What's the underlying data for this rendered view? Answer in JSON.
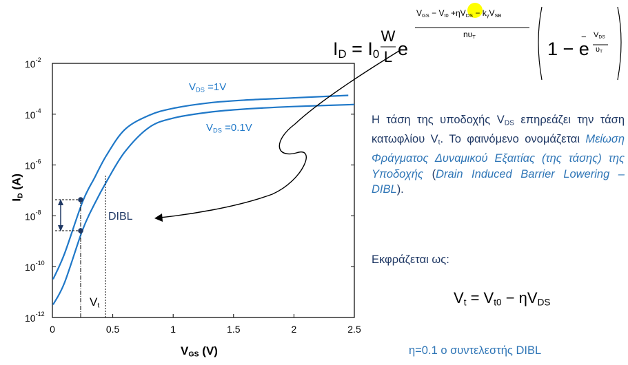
{
  "chart_data": {
    "type": "line",
    "xlabel": "V_GS (V)",
    "ylabel": "I_D (A)",
    "xlim": [
      0,
      2.5
    ],
    "ylim": [
      1e-12,
      0.01
    ],
    "yscale": "log",
    "x_ticks": [
      "0",
      "0.5",
      "1",
      "1.5",
      "2",
      "2.5"
    ],
    "y_ticks": [
      {
        "base": "10",
        "exp": "-2"
      },
      {
        "base": "10",
        "exp": "-4"
      },
      {
        "base": "10",
        "exp": "-6"
      },
      {
        "base": "10",
        "exp": "-8"
      },
      {
        "base": "10",
        "exp": "-10"
      },
      {
        "base": "10",
        "exp": "-12"
      }
    ],
    "series": [
      {
        "name": "V_DS =1V",
        "x": [
          -0.05,
          0.1,
          0.25,
          0.35,
          0.45,
          0.6,
          0.8,
          1.0,
          1.3,
          1.6,
          2.0,
          2.45
        ],
        "y": [
          3.2e-11,
          3.2e-10,
          3.6e-08,
          3.2e-07,
          2.5e-06,
          2.5e-05,
          9e-05,
          0.00017,
          0.00028,
          0.00036,
          0.00044,
          0.00055
        ]
      },
      {
        "name": "V_DS =0.1V",
        "x": [
          -0.05,
          0.1,
          0.25,
          0.35,
          0.45,
          0.6,
          0.8,
          1.0,
          1.3,
          1.6,
          2.0,
          2.5
        ],
        "y": [
          3.2e-12,
          2.3e-11,
          2.8e-09,
          3e-08,
          2.3e-07,
          3.3e-06,
          3e-05,
          7e-05,
          0.00012,
          0.00016,
          0.0002,
          0.00024
        ]
      }
    ],
    "annotations": [
      "DIBL",
      "V_t"
    ],
    "color": "#1f78c8"
  },
  "labels": {
    "series1": {
      "main": "V",
      "sub": "DS",
      "rest": " =1V"
    },
    "series2": {
      "main": "V",
      "sub": "DS",
      "rest": " =0.1V"
    },
    "dibl": "DIBL",
    "vt": {
      "main": "V",
      "sub": "t"
    },
    "xlabel": {
      "main": "V",
      "sub": "GS",
      "rest": " (V)"
    },
    "ylabel": {
      "main": "I",
      "sub": "D",
      "rest": " (A)"
    }
  },
  "formula": {
    "lhs": "I",
    "lhs_sub": "D",
    "eq": " = I",
    "i0_sub": "0",
    "W": "W",
    "L": "L",
    "e": "e",
    "exp_num": {
      "vgs": "V",
      "vgs_sub": "GS",
      "t1": " − V",
      "vt0_sub": "t0",
      "t2": " +ηV",
      "vds_sub": "DS",
      "t3": " − k",
      "kg_sub": "γ",
      "t4": "V",
      "vsb_sub": "SB"
    },
    "exp_den": {
      "n": "nυ",
      "sub": "T"
    },
    "bracket": {
      "one": "1 − e",
      "minus": "−",
      "vds": "V",
      "vds_sub": "DS",
      "ut": "υ",
      "ut_sub": "T"
    },
    "highlight_color": "#ffff00"
  },
  "description": {
    "p1_a": "Η τάση της υποδοχής V",
    "p1_sub": "DS",
    "p1_b": " επηρεάζει την τάση κατωφλίου V",
    "p1_sub2": "t",
    "p1_c": ". Το φαινόμενο ονομάζεται ",
    "p1_it1": "Μείωση Φράγματος Δυναμικού Εξαιτίας (της τάσης) της Υποδοχής",
    "p1_d": " (",
    "p1_it2": "Drain Induced Barrier Lowering – DIBL",
    "p1_e": ").",
    "expressed": "Εκφράζεται ως:",
    "eq": {
      "vt": "V",
      "vt_sub": "t",
      "eq": " = V",
      "vt0_sub": "t0",
      "minus": " − ηV",
      "vds_sub": "DS"
    },
    "eta": "η=0.1  ο συντελεστής DIBL"
  }
}
